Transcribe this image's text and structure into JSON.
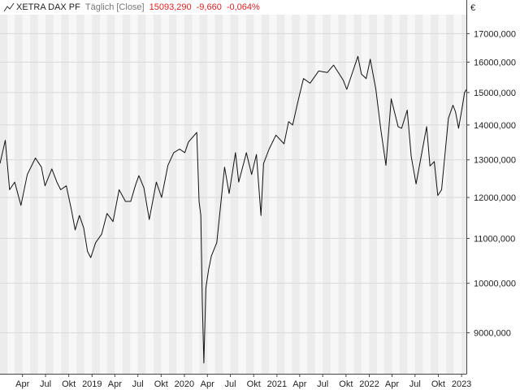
{
  "header": {
    "symbol": "XETRA DAX PF",
    "period": "Täglich [Close]",
    "last_value": "15093,290",
    "change_abs": "-9,660",
    "change_pct": "-0,064%",
    "change_color": "#dd2222",
    "icon": "line-chart-icon"
  },
  "chart_data": {
    "type": "line",
    "currency": "€",
    "y_scale": "log",
    "ylim": [
      8250,
      17700
    ],
    "y_ticks": [
      9000,
      10000,
      11000,
      12000,
      13000,
      14000,
      15000,
      16000,
      17000
    ],
    "y_tick_labels": [
      "9000,000",
      "10000,000",
      "11000,000",
      "12000,000",
      "13000,000",
      "14000,000",
      "15000,000",
      "16000,000",
      "17000,000"
    ],
    "x_range": [
      "2018-01-02",
      "2023-01-20"
    ],
    "x_ticks": [
      {
        "date": "2018-04-01",
        "label": "Apr"
      },
      {
        "date": "2018-07-01",
        "label": "Jul"
      },
      {
        "date": "2018-10-01",
        "label": "Okt"
      },
      {
        "date": "2019-01-01",
        "label": "2019"
      },
      {
        "date": "2019-04-01",
        "label": "Apr"
      },
      {
        "date": "2019-07-01",
        "label": "Jul"
      },
      {
        "date": "2019-10-01",
        "label": "Okt"
      },
      {
        "date": "2020-01-01",
        "label": "2020"
      },
      {
        "date": "2020-04-01",
        "label": "Apr"
      },
      {
        "date": "2020-07-01",
        "label": "Jul"
      },
      {
        "date": "2020-10-01",
        "label": "Okt"
      },
      {
        "date": "2021-01-01",
        "label": "2021"
      },
      {
        "date": "2021-04-01",
        "label": "Apr"
      },
      {
        "date": "2021-07-01",
        "label": "Jul"
      },
      {
        "date": "2021-10-01",
        "label": "Okt"
      },
      {
        "date": "2022-01-01",
        "label": "2022"
      },
      {
        "date": "2022-04-01",
        "label": "Apr"
      },
      {
        "date": "2022-07-01",
        "label": "Jul"
      },
      {
        "date": "2022-10-01",
        "label": "Okt"
      },
      {
        "date": "2023-01-01",
        "label": "2023"
      }
    ],
    "grid": true,
    "alternating_month_bands": true,
    "line_color": "#111111",
    "series": [
      {
        "x": [
          "2018-01-02",
          "2018-01-23",
          "2018-02-09",
          "2018-03-01",
          "2018-03-26",
          "2018-04-20",
          "2018-05-22",
          "2018-06-15",
          "2018-06-29",
          "2018-07-26",
          "2018-08-15",
          "2018-08-30",
          "2018-09-21",
          "2018-10-11",
          "2018-10-26",
          "2018-11-12",
          "2018-11-29",
          "2018-12-14",
          "2018-12-27",
          "2019-01-15",
          "2019-02-08",
          "2019-03-01",
          "2019-03-25",
          "2019-04-18",
          "2019-05-13",
          "2019-06-03",
          "2019-06-21",
          "2019-07-05",
          "2019-07-25",
          "2019-08-15",
          "2019-09-12",
          "2019-10-03",
          "2019-10-28",
          "2019-11-20",
          "2019-12-13",
          "2020-01-03",
          "2020-01-17",
          "2020-02-19",
          "2020-02-28",
          "2020-03-06",
          "2020-03-12",
          "2020-03-18",
          "2020-03-26",
          "2020-04-06",
          "2020-04-17",
          "2020-05-08",
          "2020-06-08",
          "2020-06-26",
          "2020-07-21",
          "2020-08-03",
          "2020-08-26",
          "2020-09-02",
          "2020-09-23",
          "2020-10-12",
          "2020-10-30",
          "2020-11-09",
          "2020-12-01",
          "2020-12-28",
          "2021-01-29",
          "2021-02-16",
          "2021-03-04",
          "2021-03-26",
          "2021-04-16",
          "2021-05-12",
          "2021-06-15",
          "2021-07-19",
          "2021-08-13",
          "2021-09-20",
          "2021-10-04",
          "2021-11-17",
          "2021-12-01",
          "2021-12-20",
          "2022-01-05",
          "2022-01-27",
          "2022-02-15",
          "2022-03-08",
          "2022-03-29",
          "2022-04-25",
          "2022-05-09",
          "2022-05-31",
          "2022-06-16",
          "2022-07-05",
          "2022-08-16",
          "2022-08-29",
          "2022-09-15",
          "2022-09-29",
          "2022-10-14",
          "2022-11-10",
          "2022-11-28",
          "2022-12-08",
          "2022-12-20",
          "2023-01-05",
          "2023-01-13",
          "2023-01-20"
        ],
        "values": [
          12900,
          13550,
          12200,
          12400,
          11800,
          12600,
          13050,
          12800,
          12300,
          12750,
          12400,
          12200,
          12300,
          11700,
          11200,
          11550,
          11250,
          10700,
          10560,
          10900,
          11100,
          11600,
          11400,
          12200,
          11900,
          11900,
          12300,
          12570,
          12250,
          11450,
          12400,
          12000,
          12850,
          13200,
          13300,
          13200,
          13500,
          13780,
          11900,
          11550,
          9600,
          8440,
          9900,
          10300,
          10600,
          10900,
          12800,
          12100,
          13200,
          12400,
          13000,
          13200,
          12600,
          13150,
          11550,
          12900,
          13300,
          13700,
          13450,
          14100,
          14000,
          14750,
          15450,
          15300,
          15700,
          15650,
          15900,
          15400,
          15100,
          16200,
          15600,
          15450,
          16100,
          15100,
          13900,
          12850,
          14800,
          13950,
          13900,
          14450,
          13100,
          12350,
          13950,
          12830,
          12950,
          12050,
          12200,
          14200,
          14600,
          14400,
          13900,
          14600,
          15000,
          15093
        ]
      }
    ]
  }
}
